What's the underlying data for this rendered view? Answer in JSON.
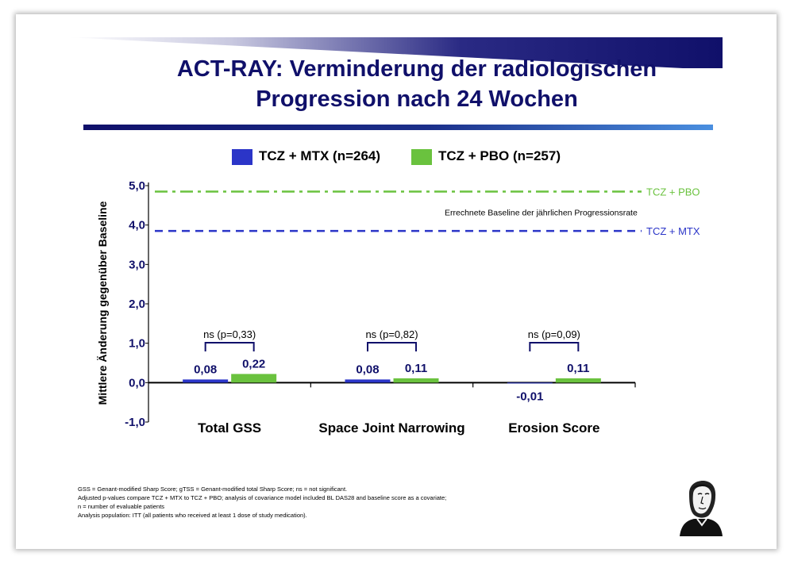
{
  "title_lines": [
    "ACT-RAY: Verminderung der radiologischen",
    "Progression nach 24 Wochen"
  ],
  "colors": {
    "tcz_mtx": "#2b35c8",
    "tcz_pbo": "#6ac23e",
    "title": "#10106a"
  },
  "footnotes": [
    "GSS = Genant-modified Sharp Score; gTSS = Genant-modified total Sharp Score; ns = not significant.",
    "Adjusted p-values compare TCZ + MTX to TCZ + PBO; analysis of covariance model included BL DAS28 and baseline score as a covariate;",
    "n = number of evaluable patients",
    "Analysis population: ITT (all patients who received at least 1 dose of study medication)."
  ],
  "chart_data": {
    "type": "bar",
    "ylabel": "Mittlere Änderung gegenüber Baseline",
    "ylim": [
      -1.0,
      5.0
    ],
    "yticks": [
      "-1,0",
      "0,0",
      "1,0",
      "2,0",
      "3,0",
      "4,0",
      "5,0"
    ],
    "categories": [
      "Total GSS",
      "Space Joint Narrowing",
      "Erosion Score"
    ],
    "series": [
      {
        "name": "TCZ + MTX (n=264)",
        "values": [
          0.08,
          0.08,
          -0.01
        ],
        "labels": [
          "0,08",
          "0,08",
          "-0,01"
        ]
      },
      {
        "name": "TCZ + PBO (n=257)",
        "values": [
          0.22,
          0.11,
          0.11
        ],
        "labels": [
          "0,22",
          "0,11",
          "0,11"
        ]
      }
    ],
    "significance": [
      "ns (p=0,33)",
      "ns (p=0,82)",
      "ns (p=0,09)"
    ],
    "reference_lines": [
      {
        "label": "TCZ + PBO",
        "value": 4.85,
        "color": "#6ac23e",
        "style": "dash-dot"
      },
      {
        "label": "TCZ + MTX",
        "value": 3.85,
        "color": "#2b35c8",
        "style": "dashed"
      }
    ],
    "reference_caption": "Errechnete Baseline der jährlichen Progressionsrate",
    "legend_position": "top"
  }
}
